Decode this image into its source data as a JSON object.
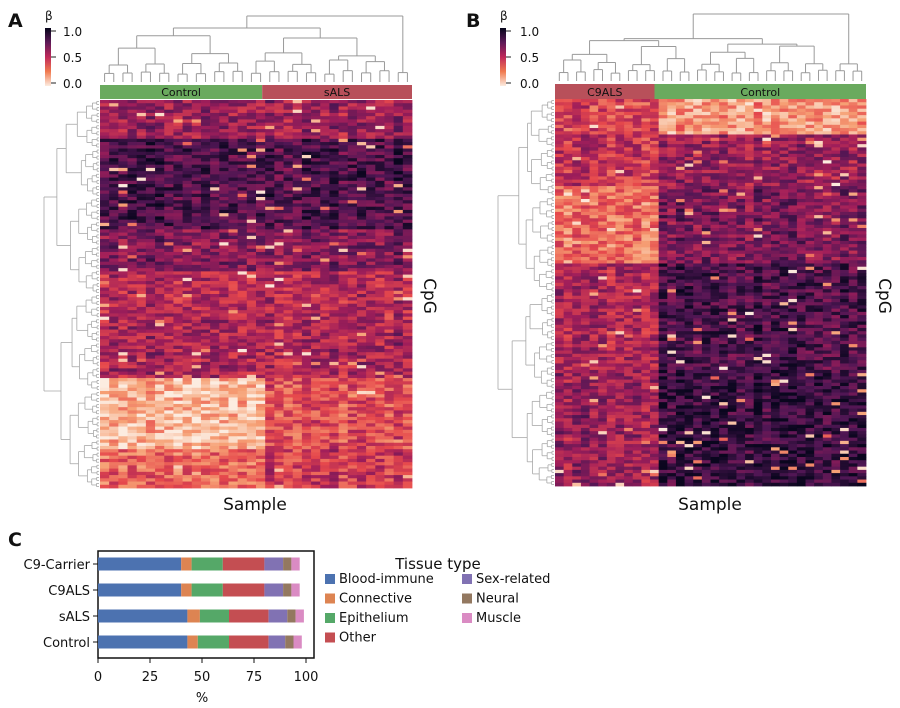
{
  "panels": [
    {
      "letter": "A",
      "colorbar": {
        "symbol": "β",
        "ticks": [
          "1.0",
          "0.5",
          "0.0"
        ]
      },
      "groups": [
        {
          "label": "Control",
          "fraction": 0.52,
          "color": "#6aaa5e"
        },
        {
          "label": "sALS",
          "fraction": 0.48,
          "color": "#b8505a"
        }
      ],
      "xlabel": "Sample",
      "ylabel": "CpG",
      "legend": "left"
    },
    {
      "letter": "B",
      "colorbar": {
        "symbol": "β",
        "ticks": [
          "1.0",
          "0.5",
          "0.0"
        ]
      },
      "groups": [
        {
          "label": "C9ALS",
          "fraction": 0.32,
          "color": "#b8505a"
        },
        {
          "label": "Control",
          "fraction": 0.68,
          "color": "#6aaa5e"
        }
      ],
      "xlabel": "Sample",
      "ylabel": "CpG"
    },
    {
      "letter": "C"
    }
  ],
  "chart_data": [
    {
      "type": "heatmap",
      "panel": "A",
      "colorbar_label": "β",
      "colorbar_range": [
        0.0,
        1.0
      ],
      "columns": [
        "Control",
        "sALS"
      ],
      "xlabel": "Sample",
      "ylabel": "CpG"
    },
    {
      "type": "heatmap",
      "panel": "B",
      "colorbar_label": "β",
      "colorbar_range": [
        0.0,
        1.0
      ],
      "columns": [
        "C9ALS",
        "Control"
      ],
      "xlabel": "Sample",
      "ylabel": "CpG"
    },
    {
      "type": "bar",
      "panel": "C",
      "orientation": "horizontal",
      "stacked": true,
      "categories": [
        "C9-Carrier",
        "C9ALS",
        "sALS",
        "Control"
      ],
      "xlabel": "%",
      "xlim": [
        0,
        100
      ],
      "xticks": [
        "0",
        "25",
        "50",
        "75",
        "100"
      ],
      "legend_title": "Tissue type",
      "series": [
        {
          "name": "Blood-immune",
          "color": "#4c72b0",
          "values": [
            40,
            40,
            43,
            43
          ]
        },
        {
          "name": "Connective",
          "color": "#dd8452",
          "values": [
            5,
            5,
            6,
            5
          ]
        },
        {
          "name": "Epithelium",
          "color": "#55a868",
          "values": [
            15,
            15,
            14,
            15
          ]
        },
        {
          "name": "Other",
          "color": "#c44e52",
          "values": [
            20,
            20,
            19,
            19
          ]
        },
        {
          "name": "Sex-related",
          "color": "#8172b3",
          "values": [
            9,
            9,
            9,
            8
          ]
        },
        {
          "name": "Neural",
          "color": "#937860",
          "values": [
            4,
            4,
            4,
            4
          ]
        },
        {
          "name": "Muscle",
          "color": "#da8bc3",
          "values": [
            4,
            4,
            4,
            4
          ]
        }
      ]
    }
  ]
}
